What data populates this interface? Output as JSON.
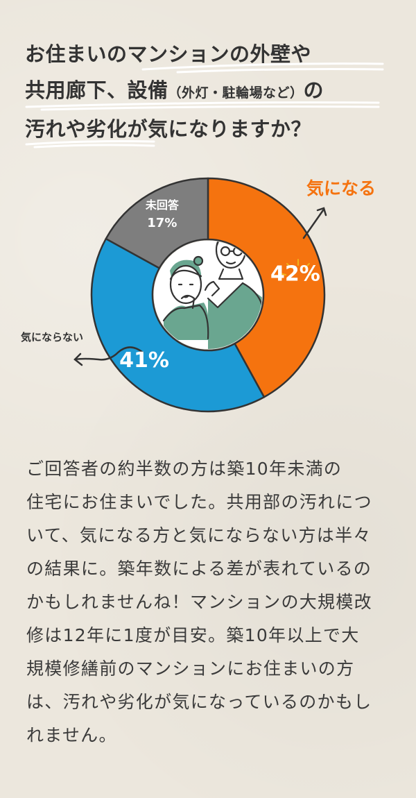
{
  "header": {
    "title_line1": "お住まいのマンションの外壁や",
    "title_line2_main": "共用廊下、設備",
    "title_line2_paren": "（外灯・駐輪場など）",
    "title_line2_end": "の",
    "title_line3": "汚れや劣化が気になりますか？"
  },
  "chart_data": {
    "type": "pie",
    "variant": "donut",
    "categories": [
      "気になる",
      "気にならない",
      "未回答"
    ],
    "values": [
      42,
      41,
      17
    ],
    "value_labels": [
      "42%",
      "41%",
      "17%"
    ],
    "legend_callouts": {
      "concerned": "気になる",
      "not_concerned": "気にならない",
      "no_answer": "未回答"
    },
    "colors": {
      "concerned": "#f5730f",
      "not_concerned": "#1c9ad5",
      "no_answer": "#7e7e7e"
    }
  },
  "body": {
    "text": "ご回答者の約半数の方は築10年未満の\n住宅にお住まいでした。共用部の汚れにつ\nいて、気になる方と気にならない方は半々\nの結果に。築年数による差が表れているの\nかもしれませんね！マンションの大規模改\n修は12年に1度が目安。築10年以上で大\n規模修繕前のマンションにお住まいの方\nは、汚れや劣化が気になっているのかもし\nれません。"
  },
  "theme": {
    "background": "#ece7dd",
    "text": "#333333",
    "accent_orange": "#f5730f",
    "accent_blue": "#1c9ad5",
    "accent_gray": "#7e7e7e",
    "illustration_green": "#6aa690"
  }
}
